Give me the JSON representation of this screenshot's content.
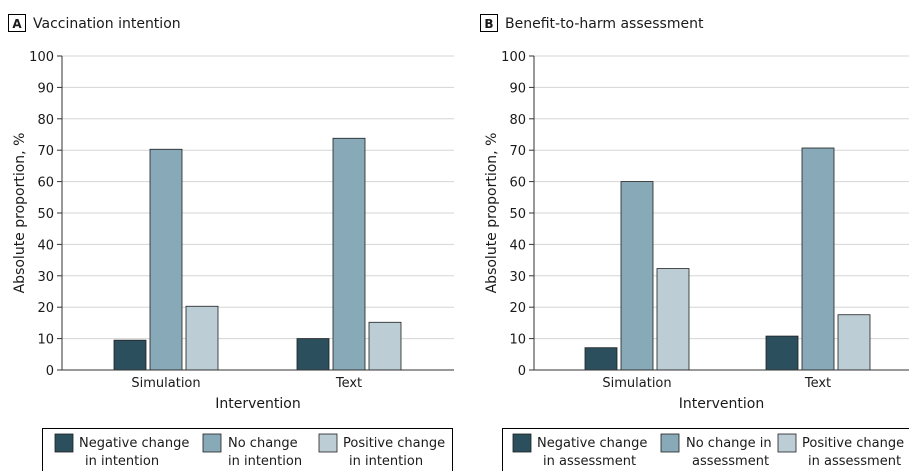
{
  "colors": {
    "negative": "#2c4f5e",
    "no_change": "#87a9b8",
    "positive": "#bccdd5",
    "grid": "#d5d5d5",
    "axis": "#333333"
  },
  "chart_data": [
    {
      "panel": "A",
      "type": "bar",
      "title": "Vaccination intention",
      "xlabel": "Intervention",
      "ylabel": "Absolute proportion, %",
      "ylim": [
        0,
        100
      ],
      "yticks": [
        0,
        10,
        20,
        30,
        40,
        50,
        60,
        70,
        80,
        90,
        100
      ],
      "grid": true,
      "legend_position": "bottom",
      "categories": [
        "Simulation",
        "Text"
      ],
      "series": [
        {
          "name": "Negative change in intention",
          "legend_lines": [
            "Negative change",
            "in intention"
          ],
          "color_key": "negative",
          "values": [
            9.5,
            10
          ]
        },
        {
          "name": "No change in intention",
          "legend_lines": [
            "No change",
            "in intention"
          ],
          "color_key": "no_change",
          "values": [
            70.3,
            73.8
          ]
        },
        {
          "name": "Positive change in intention",
          "legend_lines": [
            "Positive change",
            "in intention"
          ],
          "color_key": "positive",
          "values": [
            20.3,
            15.2
          ]
        }
      ]
    },
    {
      "panel": "B",
      "type": "bar",
      "title": "Benefit-to-harm assessment",
      "xlabel": "Intervention",
      "ylabel": "Absolute proportion, %",
      "ylim": [
        0,
        100
      ],
      "yticks": [
        0,
        10,
        20,
        30,
        40,
        50,
        60,
        70,
        80,
        90,
        100
      ],
      "grid": true,
      "legend_position": "bottom",
      "categories": [
        "Simulation",
        "Text"
      ],
      "series": [
        {
          "name": "Negative change in assessment",
          "legend_lines": [
            "Negative change",
            "in assessment"
          ],
          "color_key": "negative",
          "values": [
            7.1,
            10.8
          ]
        },
        {
          "name": "No change in assessment",
          "legend_lines": [
            "No change in",
            "assessment"
          ],
          "color_key": "no_change",
          "values": [
            60,
            70.7
          ]
        },
        {
          "name": "Positive change in assessment",
          "legend_lines": [
            "Positive change",
            "in assessment"
          ],
          "color_key": "positive",
          "values": [
            32.3,
            17.6
          ]
        }
      ]
    }
  ]
}
